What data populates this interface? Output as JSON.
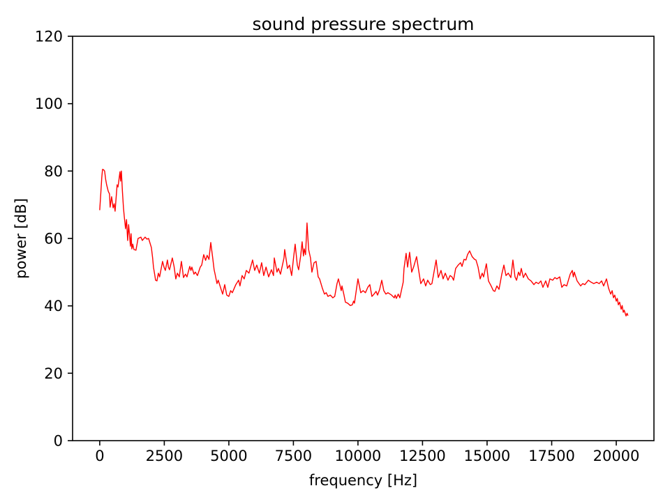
{
  "colors": {
    "line": "#ff0000",
    "axes": "#000000",
    "text": "#000000",
    "background": "#ffffff"
  },
  "chart_data": {
    "type": "line",
    "title": "sound pressure spectrum",
    "xlabel": "frequency [Hz]",
    "ylabel": "power [dB]",
    "xlim": [
      -1050,
      21460
    ],
    "ylim": [
      0,
      120
    ],
    "xticks": [
      0,
      2500,
      5000,
      7500,
      10000,
      12500,
      15000,
      17500,
      20000
    ],
    "yticks": [
      0,
      20,
      40,
      60,
      80,
      100,
      120
    ],
    "grid": false,
    "legend": "none",
    "series": [
      {
        "name": "sound pressure spectrum",
        "color": "#ff0000",
        "points": [
          [
            0,
            68.5
          ],
          [
            40,
            73.0
          ],
          [
            80,
            78.0
          ],
          [
            110,
            80.5
          ],
          [
            150,
            80.4
          ],
          [
            190,
            80.0
          ],
          [
            230,
            77.5
          ],
          [
            270,
            75.9
          ],
          [
            330,
            74.0
          ],
          [
            380,
            73.2
          ],
          [
            405,
            69.3
          ],
          [
            460,
            72.4
          ],
          [
            520,
            69.1
          ],
          [
            560,
            70.3
          ],
          [
            595,
            68.1
          ],
          [
            675,
            75.9
          ],
          [
            710,
            75.3
          ],
          [
            784,
            79.8
          ],
          [
            810,
            77.0
          ],
          [
            838,
            80.0
          ],
          [
            880,
            74.0
          ],
          [
            919,
            69.1
          ],
          [
            950,
            66.6
          ],
          [
            1000,
            62.9
          ],
          [
            1040,
            65.6
          ],
          [
            1081,
            59.4
          ],
          [
            1120,
            64.1
          ],
          [
            1190,
            57.7
          ],
          [
            1215,
            61.4
          ],
          [
            1244,
            56.9
          ],
          [
            1280,
            58.3
          ],
          [
            1325,
            56.7
          ],
          [
            1405,
            56.5
          ],
          [
            1486,
            60.0
          ],
          [
            1595,
            60.4
          ],
          [
            1650,
            59.4
          ],
          [
            1757,
            60.4
          ],
          [
            1830,
            59.8
          ],
          [
            1892,
            60.0
          ],
          [
            2000,
            57.3
          ],
          [
            2050,
            54.2
          ],
          [
            2081,
            51.5
          ],
          [
            2135,
            49.0
          ],
          [
            2162,
            47.6
          ],
          [
            2216,
            47.4
          ],
          [
            2270,
            49.7
          ],
          [
            2320,
            48.6
          ],
          [
            2405,
            52.1
          ],
          [
            2432,
            53.2
          ],
          [
            2490,
            51.5
          ],
          [
            2540,
            50.5
          ],
          [
            2622,
            53.6
          ],
          [
            2660,
            51.5
          ],
          [
            2703,
            50.7
          ],
          [
            2811,
            54.2
          ],
          [
            2880,
            51.7
          ],
          [
            2946,
            48.0
          ],
          [
            3010,
            49.7
          ],
          [
            3081,
            48.6
          ],
          [
            3162,
            53.2
          ],
          [
            3200,
            51.1
          ],
          [
            3243,
            48.4
          ],
          [
            3320,
            49.4
          ],
          [
            3378,
            48.6
          ],
          [
            3486,
            51.7
          ],
          [
            3530,
            50.5
          ],
          [
            3568,
            51.5
          ],
          [
            3649,
            49.4
          ],
          [
            3703,
            50.0
          ],
          [
            3784,
            49.0
          ],
          [
            3892,
            51.5
          ],
          [
            3950,
            52.1
          ],
          [
            4027,
            55.2
          ],
          [
            4100,
            53.5
          ],
          [
            4160,
            55.0
          ],
          [
            4230,
            53.8
          ],
          [
            4300,
            58.8
          ],
          [
            4380,
            54.0
          ],
          [
            4430,
            50.7
          ],
          [
            4460,
            49.7
          ],
          [
            4540,
            46.6
          ],
          [
            4590,
            47.6
          ],
          [
            4700,
            44.9
          ],
          [
            4760,
            43.5
          ],
          [
            4840,
            46.3
          ],
          [
            4920,
            43.2
          ],
          [
            5000,
            42.8
          ],
          [
            5070,
            44.5
          ],
          [
            5135,
            43.9
          ],
          [
            5270,
            46.3
          ],
          [
            5380,
            47.6
          ],
          [
            5430,
            45.9
          ],
          [
            5513,
            49.0
          ],
          [
            5594,
            48.0
          ],
          [
            5675,
            50.5
          ],
          [
            5780,
            49.7
          ],
          [
            5919,
            53.6
          ],
          [
            6000,
            50.5
          ],
          [
            6081,
            52.1
          ],
          [
            6180,
            49.7
          ],
          [
            6270,
            52.8
          ],
          [
            6351,
            49.0
          ],
          [
            6440,
            51.5
          ],
          [
            6540,
            48.6
          ],
          [
            6650,
            50.7
          ],
          [
            6730,
            49.0
          ],
          [
            6760,
            54.2
          ],
          [
            6865,
            50.0
          ],
          [
            6920,
            51.1
          ],
          [
            7000,
            49.4
          ],
          [
            7135,
            54.2
          ],
          [
            7162,
            56.7
          ],
          [
            7270,
            51.1
          ],
          [
            7350,
            52.1
          ],
          [
            7432,
            49.0
          ],
          [
            7510,
            54.6
          ],
          [
            7568,
            58.3
          ],
          [
            7650,
            52.1
          ],
          [
            7703,
            50.7
          ],
          [
            7780,
            54.8
          ],
          [
            7838,
            59.0
          ],
          [
            7890,
            54.8
          ],
          [
            7920,
            56.9
          ],
          [
            7970,
            55.2
          ],
          [
            8027,
            64.6
          ],
          [
            8090,
            56.7
          ],
          [
            8162,
            54.2
          ],
          [
            8216,
            50.0
          ],
          [
            8300,
            52.8
          ],
          [
            8378,
            53.2
          ],
          [
            8460,
            48.6
          ],
          [
            8514,
            48.0
          ],
          [
            8620,
            45.3
          ],
          [
            8703,
            43.5
          ],
          [
            8770,
            43.9
          ],
          [
            8838,
            42.8
          ],
          [
            8930,
            43.2
          ],
          [
            9027,
            42.4
          ],
          [
            9100,
            42.8
          ],
          [
            9189,
            46.6
          ],
          [
            9243,
            48.0
          ],
          [
            9350,
            44.5
          ],
          [
            9380,
            45.9
          ],
          [
            9450,
            43.5
          ],
          [
            9513,
            41.1
          ],
          [
            9600,
            40.8
          ],
          [
            9702,
            40.1
          ],
          [
            9780,
            40.3
          ],
          [
            9830,
            41.4
          ],
          [
            9865,
            40.8
          ],
          [
            9940,
            44.9
          ],
          [
            10000,
            48.0
          ],
          [
            10108,
            43.9
          ],
          [
            10200,
            44.5
          ],
          [
            10290,
            43.9
          ],
          [
            10380,
            45.5
          ],
          [
            10460,
            46.3
          ],
          [
            10540,
            42.8
          ],
          [
            10620,
            43.5
          ],
          [
            10700,
            44.3
          ],
          [
            10760,
            43.2
          ],
          [
            10840,
            44.9
          ],
          [
            10920,
            47.6
          ],
          [
            11000,
            44.5
          ],
          [
            11080,
            43.5
          ],
          [
            11160,
            43.9
          ],
          [
            11300,
            43.2
          ],
          [
            11405,
            42.4
          ],
          [
            11440,
            43.2
          ],
          [
            11486,
            42.2
          ],
          [
            11560,
            43.5
          ],
          [
            11622,
            42.4
          ],
          [
            11703,
            45.3
          ],
          [
            11750,
            47.0
          ],
          [
            11784,
            51.1
          ],
          [
            11865,
            55.6
          ],
          [
            11920,
            51.5
          ],
          [
            12000,
            55.9
          ],
          [
            12081,
            50.0
          ],
          [
            12162,
            51.7
          ],
          [
            12270,
            54.6
          ],
          [
            12351,
            50.5
          ],
          [
            12432,
            46.6
          ],
          [
            12540,
            48.0
          ],
          [
            12622,
            45.9
          ],
          [
            12700,
            47.6
          ],
          [
            12800,
            46.3
          ],
          [
            12865,
            46.6
          ],
          [
            13027,
            53.6
          ],
          [
            13110,
            48.4
          ],
          [
            13216,
            50.5
          ],
          [
            13297,
            48.0
          ],
          [
            13380,
            49.7
          ],
          [
            13486,
            47.6
          ],
          [
            13567,
            49.0
          ],
          [
            13640,
            48.6
          ],
          [
            13703,
            47.6
          ],
          [
            13784,
            51.1
          ],
          [
            13880,
            52.1
          ],
          [
            13973,
            52.8
          ],
          [
            14030,
            51.7
          ],
          [
            14108,
            53.8
          ],
          [
            14180,
            53.6
          ],
          [
            14243,
            55.2
          ],
          [
            14324,
            56.3
          ],
          [
            14420,
            54.6
          ],
          [
            14514,
            53.8
          ],
          [
            14570,
            53.6
          ],
          [
            14650,
            51.5
          ],
          [
            14730,
            48.0
          ],
          [
            14810,
            49.7
          ],
          [
            14865,
            48.6
          ],
          [
            14973,
            52.5
          ],
          [
            15054,
            47.4
          ],
          [
            15150,
            46.0
          ],
          [
            15243,
            44.5
          ],
          [
            15300,
            44.3
          ],
          [
            15380,
            45.9
          ],
          [
            15460,
            44.9
          ],
          [
            15570,
            49.4
          ],
          [
            15649,
            52.1
          ],
          [
            15730,
            49.0
          ],
          [
            15820,
            49.7
          ],
          [
            15919,
            48.4
          ],
          [
            16000,
            53.6
          ],
          [
            16081,
            48.6
          ],
          [
            16140,
            47.6
          ],
          [
            16216,
            50.0
          ],
          [
            16270,
            49.0
          ],
          [
            16324,
            51.1
          ],
          [
            16405,
            48.4
          ],
          [
            16486,
            49.7
          ],
          [
            16595,
            48.0
          ],
          [
            16700,
            47.4
          ],
          [
            16811,
            46.3
          ],
          [
            16892,
            47.0
          ],
          [
            16990,
            46.6
          ],
          [
            17081,
            47.4
          ],
          [
            17162,
            45.5
          ],
          [
            17270,
            47.4
          ],
          [
            17351,
            45.5
          ],
          [
            17432,
            48.0
          ],
          [
            17540,
            47.6
          ],
          [
            17622,
            48.4
          ],
          [
            17700,
            48.0
          ],
          [
            17811,
            48.6
          ],
          [
            17892,
            45.5
          ],
          [
            17980,
            46.3
          ],
          [
            18081,
            45.9
          ],
          [
            18216,
            49.4
          ],
          [
            18297,
            50.5
          ],
          [
            18340,
            48.6
          ],
          [
            18378,
            50.0
          ],
          [
            18486,
            47.4
          ],
          [
            18622,
            45.9
          ],
          [
            18700,
            46.6
          ],
          [
            18784,
            46.3
          ],
          [
            18919,
            47.6
          ],
          [
            19027,
            47.0
          ],
          [
            19130,
            46.6
          ],
          [
            19243,
            47.0
          ],
          [
            19340,
            46.6
          ],
          [
            19432,
            47.4
          ],
          [
            19513,
            45.9
          ],
          [
            19622,
            48.0
          ],
          [
            19700,
            45.3
          ],
          [
            19784,
            43.5
          ],
          [
            19840,
            44.5
          ],
          [
            19892,
            42.4
          ],
          [
            19940,
            43.2
          ],
          [
            20000,
            41.4
          ],
          [
            20040,
            42.2
          ],
          [
            20081,
            40.3
          ],
          [
            20130,
            41.1
          ],
          [
            20189,
            39.0
          ],
          [
            20230,
            40.1
          ],
          [
            20270,
            38.1
          ],
          [
            20310,
            38.7
          ],
          [
            20378,
            37.0
          ],
          [
            20420,
            37.8
          ],
          [
            20450,
            37.2
          ]
        ]
      }
    ]
  }
}
